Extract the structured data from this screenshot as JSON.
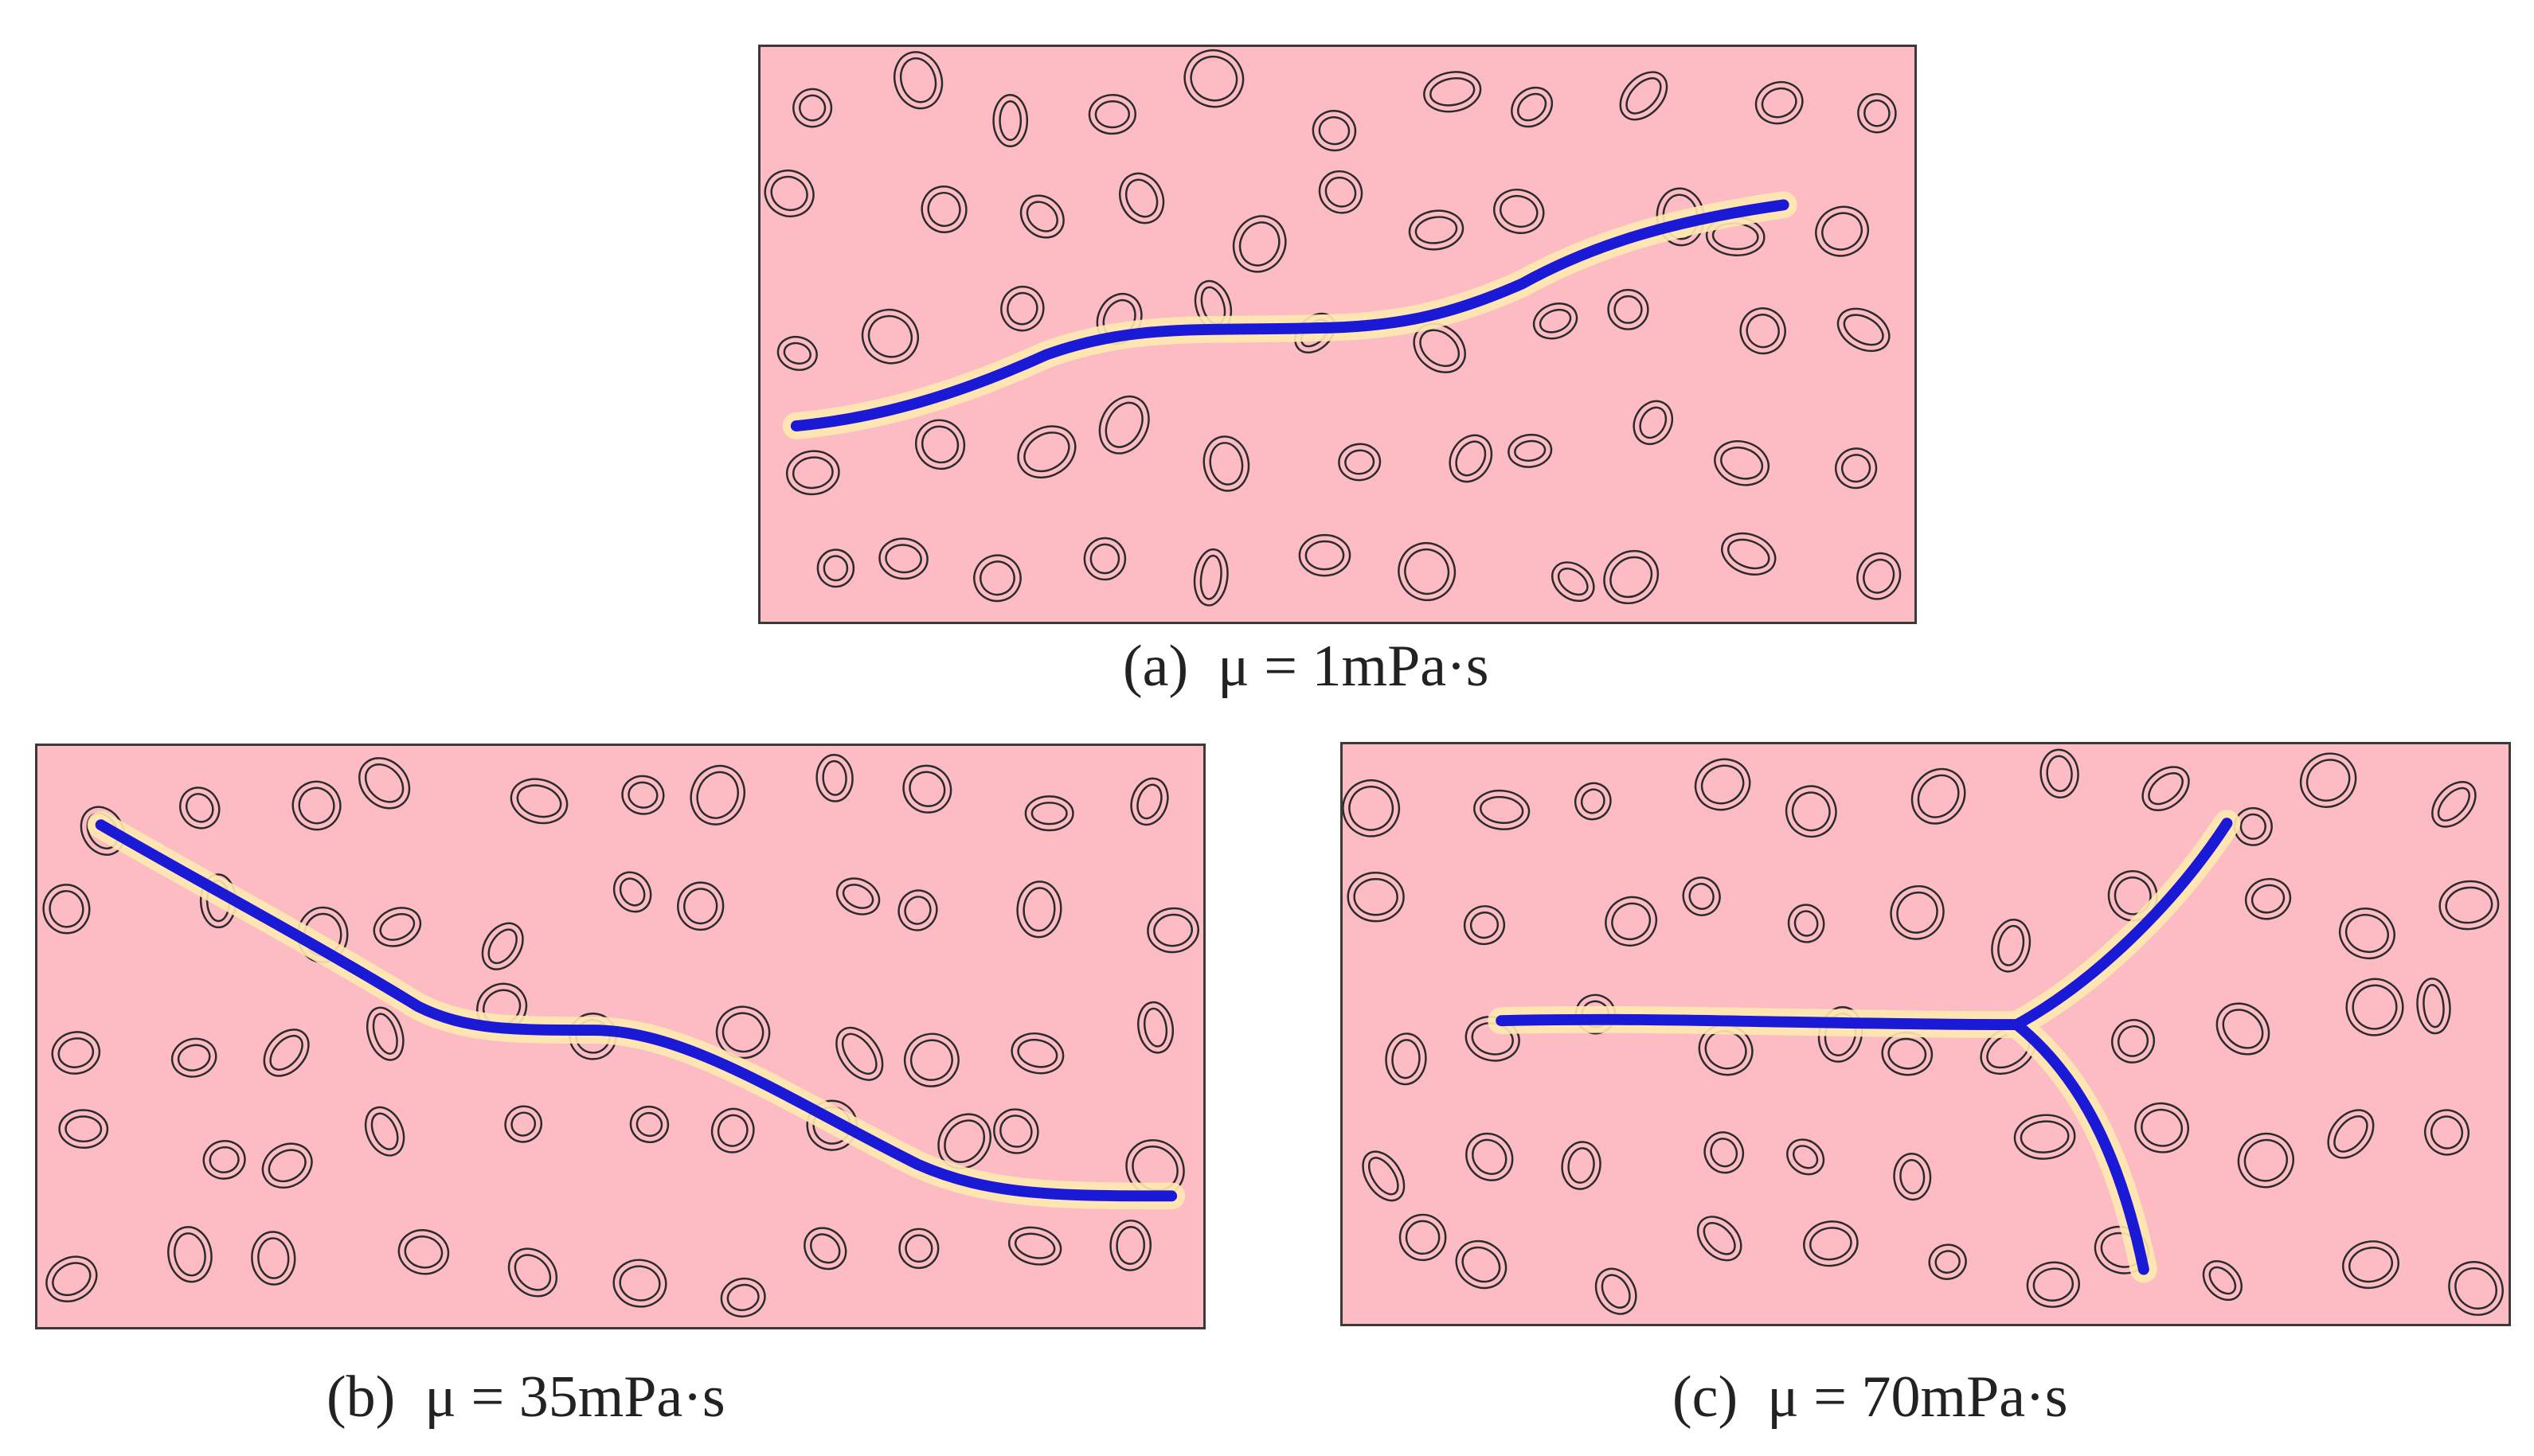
{
  "figure": {
    "panels": [
      {
        "id": "a",
        "caption": "(a)  μ = 1mPa·s"
      },
      {
        "id": "b",
        "caption": "(b)  μ = 35mPa·s"
      },
      {
        "id": "c",
        "caption": "(c)  μ = 70mPa·s"
      }
    ],
    "colors": {
      "matrix": "#fdbcc4",
      "fracture": "#1a1ad6",
      "fracture_halo": "#ffe9b0",
      "grain_outline": "#2b2b2b",
      "panel_border": "#3a3a3a"
    }
  }
}
